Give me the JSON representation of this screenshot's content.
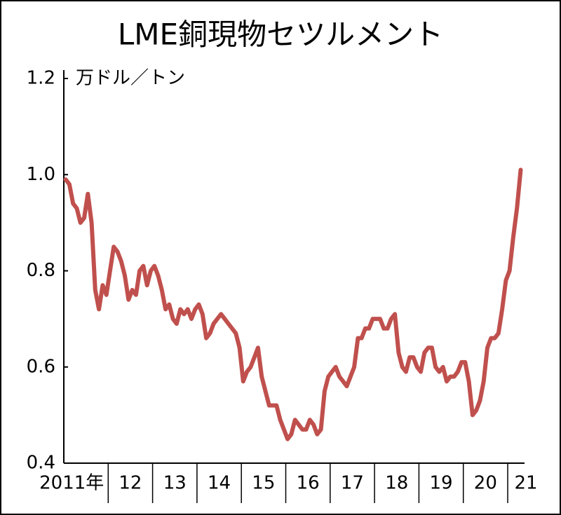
{
  "chart_data": {
    "type": "line",
    "title": "LME銅現物セツルメント",
    "y_label": "万ドル／トン",
    "color": "#c0504d",
    "ylim": [
      0.4,
      1.2
    ],
    "yticks": [
      0.4,
      0.6,
      0.8,
      {
        "value": 1,
        "label": "1.0"
      },
      1.2
    ],
    "categories": [
      "2011年",
      "12",
      "13",
      "14",
      "15",
      "16",
      "17",
      "18",
      "19",
      "20",
      "21"
    ],
    "values_by_category": [
      [
        0.99,
        0.98,
        0.94,
        0.93,
        0.9,
        0.91,
        0.96,
        0.9,
        0.76,
        0.72,
        0.77,
        0.75
      ],
      [
        0.8,
        0.85,
        0.84,
        0.82,
        0.79,
        0.74,
        0.76,
        0.75,
        0.8,
        0.81,
        0.77,
        0.8
      ],
      [
        0.81,
        0.79,
        0.76,
        0.72,
        0.73,
        0.7,
        0.69,
        0.72,
        0.71,
        0.72,
        0.7,
        0.72
      ],
      [
        0.73,
        0.71,
        0.66,
        0.67,
        0.69,
        0.7,
        0.71,
        0.7,
        0.69,
        0.68,
        0.67,
        0.64
      ],
      [
        0.57,
        0.59,
        0.6,
        0.62,
        0.64,
        0.58,
        0.55,
        0.52,
        0.52,
        0.52,
        0.49,
        0.47
      ],
      [
        0.45,
        0.46,
        0.49,
        0.48,
        0.47,
        0.47,
        0.49,
        0.48,
        0.46,
        0.47,
        0.55,
        0.58
      ],
      [
        0.59,
        0.6,
        0.58,
        0.57,
        0.56,
        0.58,
        0.6,
        0.66,
        0.66,
        0.68,
        0.68,
        0.7
      ],
      [
        0.7,
        0.7,
        0.68,
        0.68,
        0.7,
        0.71,
        0.63,
        0.6,
        0.59,
        0.62,
        0.62,
        0.6
      ],
      [
        0.59,
        0.63,
        0.64,
        0.64,
        0.6,
        0.59,
        0.6,
        0.57,
        0.58,
        0.58,
        0.59,
        0.61
      ],
      [
        0.61,
        0.57,
        0.5,
        0.51,
        0.53,
        0.57,
        0.64,
        0.66,
        0.66,
        0.67,
        0.72,
        0.78
      ],
      [
        0.8,
        0.87,
        0.93,
        1.01
      ]
    ]
  }
}
